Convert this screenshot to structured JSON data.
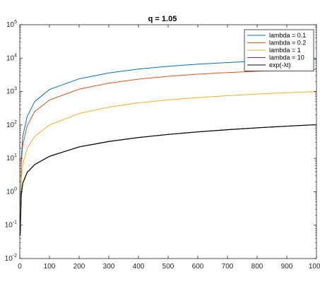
{
  "chart_data": {
    "type": "line",
    "title": "q = 1.05",
    "xlabel": "",
    "ylabel": "",
    "xlim": [
      0,
      1000
    ],
    "ylim": [
      0.01,
      100000
    ],
    "yscale": "log",
    "grid": false,
    "legend_location": "top-right",
    "x_ticks": [
      0,
      100,
      200,
      300,
      400,
      500,
      600,
      700,
      800,
      900,
      1000
    ],
    "x_tick_labels": [
      "0",
      "100",
      "200",
      "300",
      "400",
      "500",
      "600",
      "700",
      "800",
      "900",
      "1000"
    ],
    "y_ticks": [
      0.01,
      0.1,
      1,
      10,
      100,
      1000,
      10000,
      100000
    ],
    "y_tick_labels": [
      {
        "base": "10",
        "exp": "-2"
      },
      {
        "base": "10",
        "exp": "-1"
      },
      {
        "base": "10",
        "exp": "0"
      },
      {
        "base": "10",
        "exp": "1"
      },
      {
        "base": "10",
        "exp": "2"
      },
      {
        "base": "10",
        "exp": "3"
      },
      {
        "base": "10",
        "exp": "4"
      },
      {
        "base": "10",
        "exp": "5"
      }
    ],
    "x": [
      1,
      5,
      10,
      25,
      50,
      100,
      200,
      300,
      400,
      500,
      600,
      700,
      800,
      900,
      1000
    ],
    "series": [
      {
        "name": "lambda = 0.1",
        "color": "#0072BD",
        "values": [
          0.05,
          10,
          45,
          180,
          500,
          1150,
          2400,
          3600,
          4700,
          5700,
          6600,
          7400,
          8100,
          8700,
          9200
        ]
      },
      {
        "name": "lambda = 0.2",
        "color": "#D95319",
        "values": [
          0.05,
          7,
          25,
          95,
          250,
          560,
          1180,
          1780,
          2350,
          2850,
          3300,
          3700,
          4050,
          4350,
          4600
        ]
      },
      {
        "name": "lambda = 1",
        "color": "#EDB120",
        "values": [
          0.05,
          2.5,
          6.5,
          20,
          45,
          100,
          220,
          340,
          460,
          560,
          660,
          750,
          840,
          920,
          1000
        ]
      },
      {
        "name": "lambda = 10",
        "color": "#7E2F8E",
        "values": [
          0.05,
          0.8,
          1.8,
          3.8,
          6.5,
          11.5,
          22,
          32,
          42,
          52,
          62,
          72,
          82,
          92,
          102
        ]
      },
      {
        "name": "exp(-λt)",
        "color": "#000000",
        "values": [
          0.05,
          0.8,
          1.8,
          3.8,
          6.5,
          11.5,
          22,
          32,
          42,
          52,
          62,
          72,
          82,
          92,
          102
        ]
      }
    ]
  }
}
